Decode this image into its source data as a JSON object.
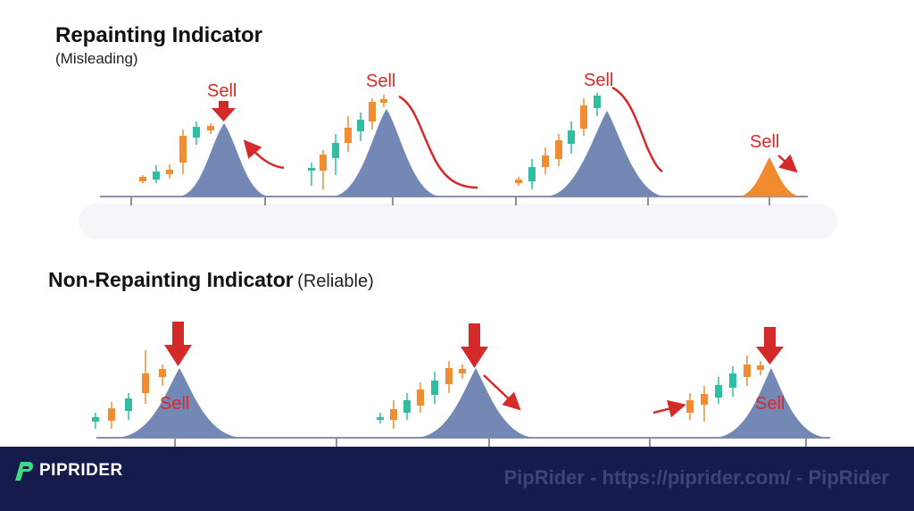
{
  "repainting": {
    "title": "Repainting Indicator",
    "subtitle": "(Misleading)",
    "signals": [
      "Sell",
      "Sell",
      "Sell",
      "Sell"
    ]
  },
  "non_repainting": {
    "title": "Non-Repainting Indicator",
    "subtitle": "(Reliable)",
    "signals": [
      "Sell",
      "Sell",
      "Sell"
    ]
  },
  "footer": {
    "brand": "PIPRIDER",
    "watermark": "PipRider - https://piprider.com/ - PipRider"
  },
  "colors": {
    "peak_fill": "#7488b6",
    "late_peak_fill": "#f28a2e",
    "bull_candle": "#2fbfa0",
    "bear_candle": "#f08c32",
    "signal_red": "#d42a2a",
    "footer_bg": "#171b4b",
    "brand_green": "#3ddc84"
  },
  "icons": {
    "logo": "piprider-logo-icon",
    "signal_arrow": "down-arrow-icon"
  }
}
